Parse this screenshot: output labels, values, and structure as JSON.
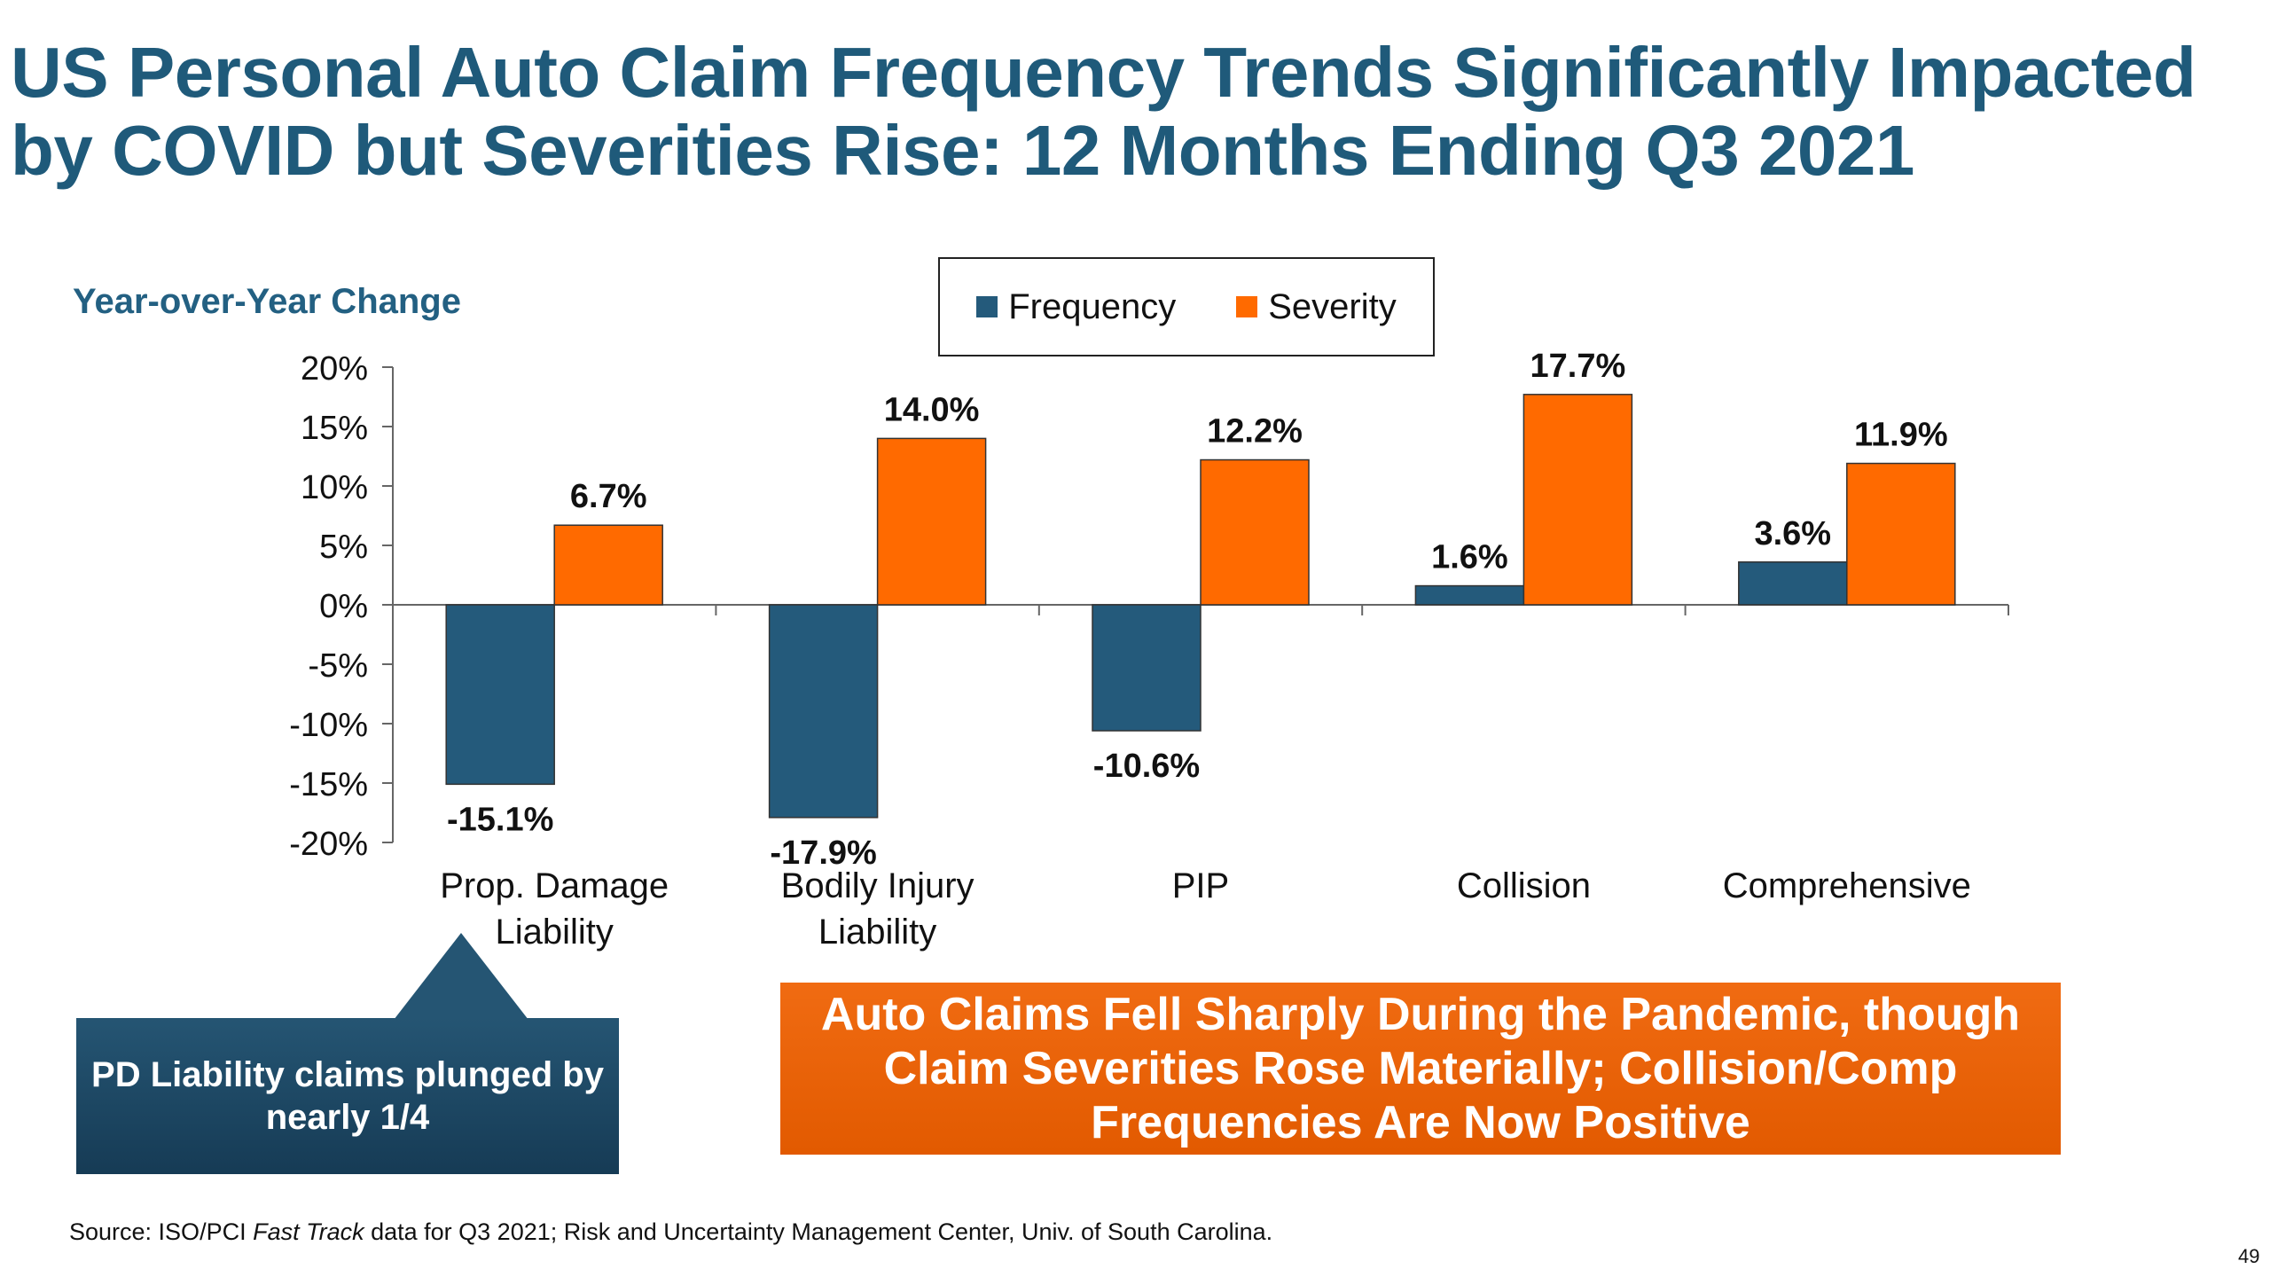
{
  "title": "US Personal Auto Claim Frequency Trends Significantly Impacted by COVID but Severities Rise: 12 Months Ending Q3 2021",
  "chart_data": {
    "type": "bar",
    "ylabel": "Year-over-Year Change",
    "xlabel": "",
    "categories": [
      [
        "Prop. Damage",
        "Liability"
      ],
      [
        "Bodily Injury",
        "Liability"
      ],
      [
        "PIP"
      ],
      [
        "Collision"
      ],
      [
        "Comprehensive"
      ]
    ],
    "series": [
      {
        "name": "Frequency",
        "color": "#245a7b",
        "values": [
          -15.1,
          -17.9,
          -10.6,
          1.6,
          3.6
        ],
        "labels": [
          "-15.1%",
          "-17.9%",
          "-10.6%",
          "1.6%",
          "3.6%"
        ]
      },
      {
        "name": "Severity",
        "color": "#ff6a00",
        "values": [
          6.7,
          14.0,
          12.2,
          17.7,
          11.9
        ],
        "labels": [
          "6.7%",
          "14.0%",
          "12.2%",
          "17.7%",
          "11.9%"
        ]
      }
    ],
    "ylim": [
      -20,
      20
    ],
    "yticks": [
      20,
      15,
      10,
      5,
      0,
      -5,
      -10,
      -15,
      -20
    ],
    "ytick_labels": [
      "20%",
      "15%",
      "10%",
      "5%",
      "0%",
      "-5%",
      "-10%",
      "-15%",
      "-20%"
    ],
    "grid": false,
    "legend_position": "top-center"
  },
  "callouts": {
    "blue": "PD Liability claims plunged by nearly 1/4",
    "orange": "Auto Claims Fell Sharply During the Pandemic, though Claim Severities Rose Materially; Collision/Comp Frequencies Are Now Positive"
  },
  "source": {
    "prefix": "Source: ISO/PCI ",
    "italic": "Fast Track",
    "suffix": " data for Q3 2021; Risk and Uncertainty Management Center, Univ. of South Carolina."
  },
  "page_number": "49"
}
